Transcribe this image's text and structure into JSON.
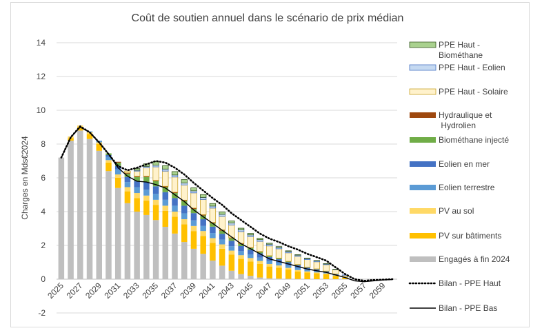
{
  "chart_data": {
    "type": "bar",
    "subtype": "stacked-bar-with-lines",
    "title": "Coût de soutien annuel dans le scénario de prix médian",
    "xlabel": "",
    "ylabel": "Charges en Mds€2024",
    "ylim": [
      -2,
      14
    ],
    "yticks": [
      -2,
      0,
      2,
      4,
      6,
      8,
      10,
      12,
      14
    ],
    "grid": "horizontal",
    "legend_position": "right",
    "x": [
      2025,
      2026,
      2027,
      2028,
      2029,
      2030,
      2031,
      2032,
      2033,
      2034,
      2035,
      2036,
      2037,
      2038,
      2039,
      2040,
      2041,
      2042,
      2043,
      2044,
      2045,
      2046,
      2047,
      2048,
      2049,
      2050,
      2051,
      2052,
      2053,
      2054,
      2055,
      2056,
      2057,
      2058,
      2059,
      2060
    ],
    "xtick_labels": [
      "2025",
      "2027",
      "2029",
      "2031",
      "2033",
      "2035",
      "2037",
      "2039",
      "2041",
      "2043",
      "2045",
      "2047",
      "2049",
      "2051",
      "2053",
      "2055",
      "2057",
      "2059"
    ],
    "series": [
      {
        "name": "Engagés à fin 2024",
        "color": "#bfbfbf",
        "kind": "bar",
        "values": [
          7.2,
          8.2,
          8.8,
          8.3,
          7.6,
          6.4,
          5.4,
          4.5,
          4.0,
          3.8,
          3.5,
          3.1,
          2.7,
          2.2,
          1.8,
          1.5,
          1.1,
          0.8,
          0.5,
          0.3,
          0.2,
          0.1,
          0.05,
          0.03,
          0.02,
          0.01,
          0,
          0,
          0,
          0,
          0,
          0,
          0,
          0,
          0,
          0
        ]
      },
      {
        "name": "PV sur bâtiments",
        "color": "#ffc000",
        "kind": "bar",
        "values": [
          0,
          0.15,
          0.2,
          0.3,
          0.4,
          0.5,
          0.6,
          0.7,
          0.8,
          0.85,
          0.9,
          0.95,
          1.0,
          1.05,
          1.05,
          1.05,
          1.05,
          1.0,
          0.95,
          0.9,
          0.85,
          0.8,
          0.7,
          0.65,
          0.55,
          0.45,
          0.4,
          0.35,
          0.3,
          0.2,
          0.1,
          0,
          0,
          0,
          0,
          0
        ]
      },
      {
        "name": "PV au sol",
        "color": "#ffd966",
        "kind": "bar",
        "values": [
          0,
          0.1,
          0.1,
          0.1,
          0.1,
          0.15,
          0.2,
          0.25,
          0.3,
          0.3,
          0.3,
          0.3,
          0.3,
          0.3,
          0.3,
          0.3,
          0.28,
          0.26,
          0.24,
          0.22,
          0.2,
          0.18,
          0.15,
          0.13,
          0.1,
          0.08,
          0.06,
          0.05,
          0.04,
          0.02,
          0.01,
          0,
          0,
          0,
          0,
          0
        ]
      },
      {
        "name": "Eolien terrestre",
        "color": "#5b9bd5",
        "kind": "bar",
        "values": [
          0,
          0,
          0,
          0.05,
          0.1,
          0.2,
          0.3,
          0.3,
          0.35,
          0.35,
          0.35,
          0.35,
          0.35,
          0.35,
          0.33,
          0.3,
          0.3,
          0.28,
          0.26,
          0.24,
          0.22,
          0.2,
          0.18,
          0.17,
          0.15,
          0.13,
          0.1,
          0.08,
          0.05,
          0.03,
          0.01,
          0,
          0,
          0,
          0,
          0
        ]
      },
      {
        "name": "Eolien en mer",
        "color": "#4472c4",
        "kind": "bar",
        "values": [
          0,
          0,
          0,
          0,
          0,
          0.1,
          0.2,
          0.3,
          0.35,
          0.45,
          0.45,
          0.45,
          0.45,
          0.45,
          0.43,
          0.4,
          0.38,
          0.35,
          0.32,
          0.3,
          0.27,
          0.25,
          0.23,
          0.2,
          0.18,
          0.16,
          0.12,
          0.1,
          0.08,
          0.05,
          0.02,
          0,
          0,
          0,
          0,
          0
        ]
      },
      {
        "name": "Biométhane injecté",
        "color": "#70ad47",
        "kind": "bar",
        "values": [
          0,
          0,
          0,
          0,
          0,
          0.1,
          0.2,
          0.2,
          0.25,
          0.3,
          0.3,
          0.3,
          0.3,
          0.28,
          0.25,
          0.22,
          0.2,
          0.18,
          0.15,
          0.12,
          0.1,
          0.08,
          0.06,
          0.05,
          0.04,
          0.03,
          0.02,
          0.02,
          0.01,
          0.01,
          0,
          0,
          0,
          0,
          0,
          0
        ]
      },
      {
        "name": "Hydraulique et Hydrolien",
        "color": "#9e480e",
        "kind": "bar",
        "values": [
          0,
          0,
          0,
          0,
          0,
          0,
          0.05,
          0.05,
          0.05,
          0.05,
          0.05,
          0.05,
          0.05,
          0.05,
          0.05,
          0.05,
          0.05,
          0.05,
          0.04,
          0.04,
          0.03,
          0.03,
          0.02,
          0.02,
          0.02,
          0.01,
          0.01,
          0.01,
          0,
          0,
          0,
          0,
          0,
          0,
          0,
          0
        ]
      },
      {
        "name": "PPE Haut - Solaire",
        "color": "#fff2cc",
        "border": "#c9a227",
        "kind": "bar",
        "values": [
          0,
          0,
          0,
          0,
          0,
          0,
          0,
          0.1,
          0.3,
          0.5,
          0.8,
          0.9,
          0.9,
          0.9,
          0.9,
          0.9,
          0.85,
          0.8,
          0.75,
          0.7,
          0.65,
          0.6,
          0.58,
          0.55,
          0.5,
          0.48,
          0.45,
          0.42,
          0.38,
          0.25,
          0.1,
          0,
          0,
          0,
          0,
          0
        ]
      },
      {
        "name": "PPE Haut - Eolien",
        "color": "#c5d9f1",
        "border": "#4472c4",
        "kind": "bar",
        "values": [
          0,
          0,
          0,
          0,
          0,
          0,
          0,
          0,
          0.05,
          0.08,
          0.1,
          0.12,
          0.12,
          0.12,
          0.12,
          0.12,
          0.12,
          0.12,
          0.12,
          0.1,
          0.1,
          0.1,
          0.1,
          0.08,
          0.08,
          0.07,
          0.06,
          0.05,
          0.04,
          0.02,
          0.01,
          0,
          0,
          0,
          0,
          0
        ]
      },
      {
        "name": "PPE Haut - Biométhane",
        "color": "#a9d18e",
        "border": "#375623",
        "kind": "bar",
        "values": [
          0,
          0,
          0,
          0,
          0,
          0,
          0,
          0,
          0.1,
          0.15,
          0.2,
          0.2,
          0.2,
          0.2,
          0.18,
          0.17,
          0.15,
          0.14,
          0.12,
          0.1,
          0.09,
          0.08,
          0.06,
          0.05,
          0.04,
          0.03,
          0.03,
          0.02,
          0.02,
          0.01,
          0,
          0,
          0,
          0,
          0,
          0
        ]
      },
      {
        "name": "Bilan - PPE Haut",
        "color": "#000000",
        "kind": "line",
        "dash": "dotted",
        "values": [
          7.2,
          8.4,
          9.05,
          8.7,
          8.1,
          7.4,
          6.7,
          6.45,
          6.6,
          6.8,
          7.0,
          6.9,
          6.6,
          6.2,
          5.7,
          5.25,
          4.8,
          4.4,
          3.9,
          3.5,
          3.1,
          2.7,
          2.4,
          2.2,
          1.95,
          1.75,
          1.5,
          1.3,
          1.1,
          0.7,
          0.3,
          0.0,
          -0.1,
          -0.05,
          -0.03,
          0.0
        ]
      },
      {
        "name": "Bilan - PPE Bas",
        "color": "#000000",
        "kind": "line",
        "dash": "solid",
        "values": [
          7.2,
          8.4,
          9.0,
          8.7,
          8.1,
          7.4,
          6.6,
          6.1,
          5.8,
          5.75,
          5.6,
          5.4,
          5.0,
          4.6,
          4.1,
          3.7,
          3.3,
          2.9,
          2.5,
          2.1,
          1.8,
          1.5,
          1.2,
          1.05,
          0.9,
          0.75,
          0.6,
          0.5,
          0.4,
          0.25,
          0.1,
          -0.1,
          -0.15,
          -0.1,
          -0.05,
          -0.02
        ]
      }
    ],
    "legend_order": [
      "PPE Haut - Biométhane",
      "PPE Haut - Eolien",
      "PPE Haut - Solaire",
      "Hydraulique et Hydrolien",
      "Biométhane injecté",
      "Eolien en mer",
      "Eolien terrestre",
      "PV au sol",
      "PV sur bâtiments",
      "Engagés à fin 2024",
      "Bilan - PPE Haut",
      "Bilan - PPE Bas"
    ]
  }
}
